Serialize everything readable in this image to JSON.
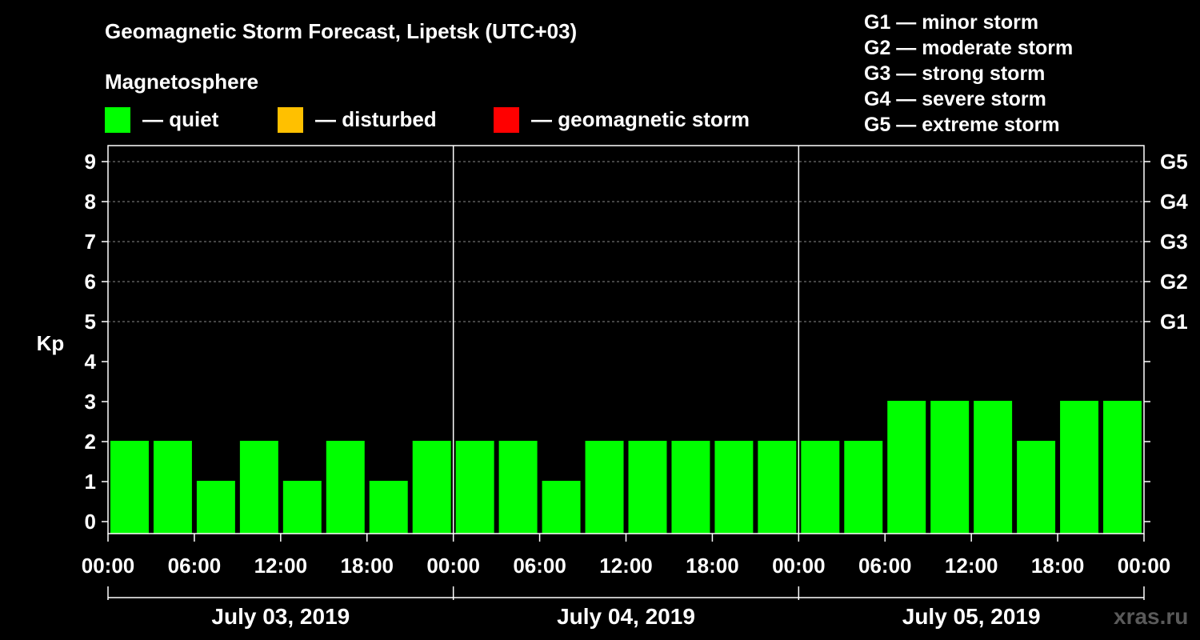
{
  "title": "Geomagnetic Storm Forecast, Lipetsk (UTC+03)",
  "legend": {
    "heading": "Magnetosphere",
    "items": [
      {
        "label": "— quiet",
        "color": "#00ff00"
      },
      {
        "label": "— disturbed",
        "color": "#ffc000"
      },
      {
        "label": "— geomagnetic storm",
        "color": "#ff0000"
      }
    ]
  },
  "storm_scale": [
    "G1 — minor storm",
    "G2 — moderate storm",
    "G3 — strong storm",
    "G4 — severe storm",
    "G5 — extreme storm"
  ],
  "watermark": "xras.ru",
  "chart_data": {
    "type": "bar",
    "ylabel": "Kp",
    "ylim": [
      0,
      9
    ],
    "yticks": [
      0,
      1,
      2,
      3,
      4,
      5,
      6,
      7,
      8,
      9
    ],
    "right_axis_labels": [
      {
        "kp": 5,
        "label": "G1"
      },
      {
        "kp": 6,
        "label": "G2"
      },
      {
        "kp": 7,
        "label": "G3"
      },
      {
        "kp": 8,
        "label": "G4"
      },
      {
        "kp": 9,
        "label": "G5"
      }
    ],
    "xticks": [
      "00:00",
      "06:00",
      "12:00",
      "18:00",
      "00:00",
      "06:00",
      "12:00",
      "18:00",
      "00:00",
      "06:00",
      "12:00",
      "18:00",
      "00:00"
    ],
    "days": [
      "July 03, 2019",
      "July 04, 2019",
      "July 05, 2019"
    ],
    "interval_hours": 3,
    "values": [
      2,
      2,
      1,
      2,
      1,
      2,
      1,
      2,
      2,
      2,
      1,
      2,
      2,
      2,
      2,
      2,
      2,
      2,
      3,
      3,
      3,
      2,
      3,
      3
    ],
    "bar_color": "#00ff00",
    "grid": "dashed horizontal at Kp 5-9"
  }
}
